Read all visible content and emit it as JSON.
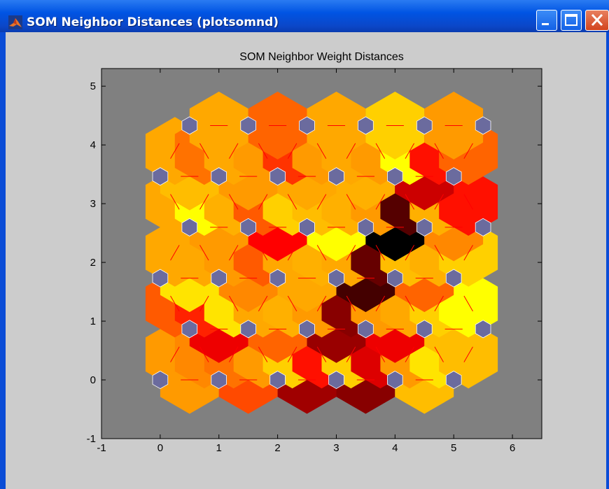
{
  "window": {
    "title": "SOM Neighbor Distances (plotsomnd)",
    "buttons": [
      "minimize",
      "maximize",
      "close"
    ]
  },
  "colors": {
    "axes_background": "#808080",
    "neuron": "#6b6b9e",
    "connection_line": "#ff0000",
    "figure_background": "#cccccc"
  },
  "chart_data": {
    "type": "heatmap",
    "title": "SOM Neighbor Weight Distances",
    "xlabel": "",
    "ylabel": "",
    "xlim": [
      -1,
      6.5
    ],
    "ylim": [
      -1,
      5.3
    ],
    "xticks": [
      -1,
      0,
      1,
      2,
      3,
      4,
      5,
      6
    ],
    "yticks": [
      -1,
      0,
      1,
      2,
      3,
      4,
      5
    ],
    "grid": false,
    "colormap": "hot",
    "neuron_grid": {
      "columns": 6,
      "rows": 6,
      "topology": "hexagonal"
    },
    "neurons": [
      [
        0,
        0
      ],
      [
        1,
        0
      ],
      [
        2,
        0
      ],
      [
        3,
        0
      ],
      [
        4,
        0
      ],
      [
        5,
        0
      ],
      [
        0.5,
        0.866
      ],
      [
        1.5,
        0.866
      ],
      [
        2.5,
        0.866
      ],
      [
        3.5,
        0.866
      ],
      [
        4.5,
        0.866
      ],
      [
        5.5,
        0.866
      ],
      [
        0,
        1.732
      ],
      [
        1,
        1.732
      ],
      [
        2,
        1.732
      ],
      [
        3,
        1.732
      ],
      [
        4,
        1.732
      ],
      [
        5,
        1.732
      ],
      [
        0.5,
        2.598
      ],
      [
        1.5,
        2.598
      ],
      [
        2.5,
        2.598
      ],
      [
        3.5,
        2.598
      ],
      [
        4.5,
        2.598
      ],
      [
        5.5,
        2.598
      ],
      [
        0,
        3.464
      ],
      [
        1,
        3.464
      ],
      [
        2,
        3.464
      ],
      [
        3,
        3.464
      ],
      [
        4,
        3.464
      ],
      [
        5,
        3.464
      ],
      [
        0.5,
        4.33
      ],
      [
        1.5,
        4.33
      ],
      [
        2.5,
        4.33
      ],
      [
        3.5,
        4.33
      ],
      [
        4.5,
        4.33
      ],
      [
        5.5,
        4.33
      ]
    ],
    "distances": [
      {
        "x": 0.5,
        "y": 0.0,
        "o": "h",
        "c": "#ff9a00"
      },
      {
        "x": 1.5,
        "y": 0.0,
        "o": "h",
        "c": "#ff4a00"
      },
      {
        "x": 2.5,
        "y": 0.0,
        "o": "h",
        "c": "#a00000"
      },
      {
        "x": 3.5,
        "y": 0.0,
        "o": "h",
        "c": "#880000"
      },
      {
        "x": 4.5,
        "y": 0.0,
        "o": "h",
        "c": "#ffbd00"
      },
      {
        "x": 0.25,
        "y": 0.433,
        "o": "r",
        "c": "#ff9a00"
      },
      {
        "x": 0.75,
        "y": 0.433,
        "o": "l",
        "c": "#ff8800"
      },
      {
        "x": 1.25,
        "y": 0.433,
        "o": "r",
        "c": "#ff7200"
      },
      {
        "x": 1.75,
        "y": 0.433,
        "o": "l",
        "c": "#ff9a00"
      },
      {
        "x": 2.25,
        "y": 0.433,
        "o": "r",
        "c": "#ffd000"
      },
      {
        "x": 2.75,
        "y": 0.433,
        "o": "l",
        "c": "#ff1000"
      },
      {
        "x": 3.25,
        "y": 0.433,
        "o": "r",
        "c": "#ffd000"
      },
      {
        "x": 3.75,
        "y": 0.433,
        "o": "l",
        "c": "#dd0000"
      },
      {
        "x": 4.25,
        "y": 0.433,
        "o": "r",
        "c": "#ff9a00"
      },
      {
        "x": 4.75,
        "y": 0.433,
        "o": "l",
        "c": "#ffe400"
      },
      {
        "x": 5.25,
        "y": 0.433,
        "o": "r",
        "c": "#ffbd00"
      },
      {
        "x": 1.0,
        "y": 0.866,
        "o": "h",
        "c": "#ee0000"
      },
      {
        "x": 2.0,
        "y": 0.866,
        "o": "h",
        "c": "#ff6400"
      },
      {
        "x": 3.0,
        "y": 0.866,
        "o": "h",
        "c": "#990000"
      },
      {
        "x": 4.0,
        "y": 0.866,
        "o": "h",
        "c": "#ee0000"
      },
      {
        "x": 5.0,
        "y": 0.866,
        "o": "h",
        "c": "#ffbd00"
      },
      {
        "x": 0.25,
        "y": 1.299,
        "o": "l",
        "c": "#ff5a00"
      },
      {
        "x": 0.75,
        "y": 1.299,
        "o": "r",
        "c": "#ff2200"
      },
      {
        "x": 1.25,
        "y": 1.299,
        "o": "l",
        "c": "#ffe400"
      },
      {
        "x": 1.75,
        "y": 1.299,
        "o": "r",
        "c": "#ffa800"
      },
      {
        "x": 2.25,
        "y": 1.299,
        "o": "l",
        "c": "#ffb000"
      },
      {
        "x": 2.75,
        "y": 1.299,
        "o": "r",
        "c": "#ff9a00"
      },
      {
        "x": 3.25,
        "y": 1.299,
        "o": "l",
        "c": "#880000"
      },
      {
        "x": 3.75,
        "y": 1.299,
        "o": "r",
        "c": "#ff9a00"
      },
      {
        "x": 4.25,
        "y": 1.299,
        "o": "l",
        "c": "#ffa800"
      },
      {
        "x": 4.75,
        "y": 1.299,
        "o": "r",
        "c": "#ffd000"
      },
      {
        "x": 5.25,
        "y": 1.299,
        "o": "l",
        "c": "#ffff00"
      },
      {
        "x": 0.5,
        "y": 1.732,
        "o": "h",
        "c": "#ffe400"
      },
      {
        "x": 1.5,
        "y": 1.732,
        "o": "h",
        "c": "#ff8800"
      },
      {
        "x": 2.5,
        "y": 1.732,
        "o": "h",
        "c": "#ffa800"
      },
      {
        "x": 3.5,
        "y": 1.732,
        "o": "h",
        "c": "#440000"
      },
      {
        "x": 4.5,
        "y": 1.732,
        "o": "h",
        "c": "#ff6400"
      },
      {
        "x": 0.25,
        "y": 2.165,
        "o": "r",
        "c": "#ffa800"
      },
      {
        "x": 0.75,
        "y": 2.165,
        "o": "l",
        "c": "#ffa800"
      },
      {
        "x": 1.25,
        "y": 2.165,
        "o": "r",
        "c": "#ff9a00"
      },
      {
        "x": 1.75,
        "y": 2.165,
        "o": "l",
        "c": "#ff5a00"
      },
      {
        "x": 2.25,
        "y": 2.165,
        "o": "r",
        "c": "#ffa800"
      },
      {
        "x": 2.75,
        "y": 2.165,
        "o": "l",
        "c": "#ffb000"
      },
      {
        "x": 3.25,
        "y": 2.165,
        "o": "r",
        "c": "#ffa800"
      },
      {
        "x": 3.75,
        "y": 2.165,
        "o": "l",
        "c": "#660000"
      },
      {
        "x": 4.25,
        "y": 2.165,
        "o": "r",
        "c": "#ffbd00"
      },
      {
        "x": 4.75,
        "y": 2.165,
        "o": "l",
        "c": "#ffb000"
      },
      {
        "x": 5.25,
        "y": 2.165,
        "o": "r",
        "c": "#ffd000"
      },
      {
        "x": 1.0,
        "y": 2.598,
        "o": "h",
        "c": "#ff9a00"
      },
      {
        "x": 2.0,
        "y": 2.598,
        "o": "h",
        "c": "#ff0000"
      },
      {
        "x": 3.0,
        "y": 2.598,
        "o": "h",
        "c": "#ffff00"
      },
      {
        "x": 4.0,
        "y": 2.598,
        "o": "h",
        "c": "#000000"
      },
      {
        "x": 5.0,
        "y": 2.598,
        "o": "h",
        "c": "#ff8800"
      },
      {
        "x": 0.25,
        "y": 3.031,
        "o": "l",
        "c": "#ffa800"
      },
      {
        "x": 0.75,
        "y": 3.031,
        "o": "r",
        "c": "#ffff00"
      },
      {
        "x": 1.25,
        "y": 3.031,
        "o": "l",
        "c": "#ffb000"
      },
      {
        "x": 1.75,
        "y": 3.031,
        "o": "r",
        "c": "#ff5a00"
      },
      {
        "x": 2.25,
        "y": 3.031,
        "o": "l",
        "c": "#ffd000"
      },
      {
        "x": 2.75,
        "y": 3.031,
        "o": "r",
        "c": "#ffbd00"
      },
      {
        "x": 3.25,
        "y": 3.031,
        "o": "l",
        "c": "#ffb000"
      },
      {
        "x": 3.75,
        "y": 3.031,
        "o": "r",
        "c": "#ff9a00"
      },
      {
        "x": 4.25,
        "y": 3.031,
        "o": "l",
        "c": "#550000"
      },
      {
        "x": 4.75,
        "y": 3.031,
        "o": "r",
        "c": "#ffb000"
      },
      {
        "x": 5.25,
        "y": 3.031,
        "o": "l",
        "c": "#ff1000"
      },
      {
        "x": 0.5,
        "y": 3.464,
        "o": "h",
        "c": "#ffbd00"
      },
      {
        "x": 1.5,
        "y": 3.464,
        "o": "h",
        "c": "#ff9a00"
      },
      {
        "x": 2.5,
        "y": 3.464,
        "o": "h",
        "c": "#ffa800"
      },
      {
        "x": 3.5,
        "y": 3.464,
        "o": "h",
        "c": "#ffb000"
      },
      {
        "x": 4.5,
        "y": 3.464,
        "o": "h",
        "c": "#cc0000"
      },
      {
        "x": 0.25,
        "y": 3.897,
        "o": "r",
        "c": "#ffa800"
      },
      {
        "x": 0.75,
        "y": 3.897,
        "o": "l",
        "c": "#ff7200"
      },
      {
        "x": 1.25,
        "y": 3.897,
        "o": "r",
        "c": "#ffa800"
      },
      {
        "x": 1.75,
        "y": 3.897,
        "o": "l",
        "c": "#ff9a00"
      },
      {
        "x": 2.25,
        "y": 3.897,
        "o": "r",
        "c": "#ff3300"
      },
      {
        "x": 2.75,
        "y": 3.897,
        "o": "l",
        "c": "#ff9a00"
      },
      {
        "x": 3.25,
        "y": 3.897,
        "o": "r",
        "c": "#ffa800"
      },
      {
        "x": 3.75,
        "y": 3.897,
        "o": "l",
        "c": "#ff9a00"
      },
      {
        "x": 4.25,
        "y": 3.897,
        "o": "r",
        "c": "#ffff00"
      },
      {
        "x": 4.75,
        "y": 3.897,
        "o": "l",
        "c": "#ff1000"
      },
      {
        "x": 5.25,
        "y": 3.897,
        "o": "r",
        "c": "#ff6400"
      },
      {
        "x": 1.0,
        "y": 4.33,
        "o": "h",
        "c": "#ffa800"
      },
      {
        "x": 2.0,
        "y": 4.33,
        "o": "h",
        "c": "#ff6400"
      },
      {
        "x": 3.0,
        "y": 4.33,
        "o": "h",
        "c": "#ffa800"
      },
      {
        "x": 4.0,
        "y": 4.33,
        "o": "h",
        "c": "#ffd000"
      },
      {
        "x": 5.0,
        "y": 4.33,
        "o": "h",
        "c": "#ff9a00"
      }
    ]
  }
}
